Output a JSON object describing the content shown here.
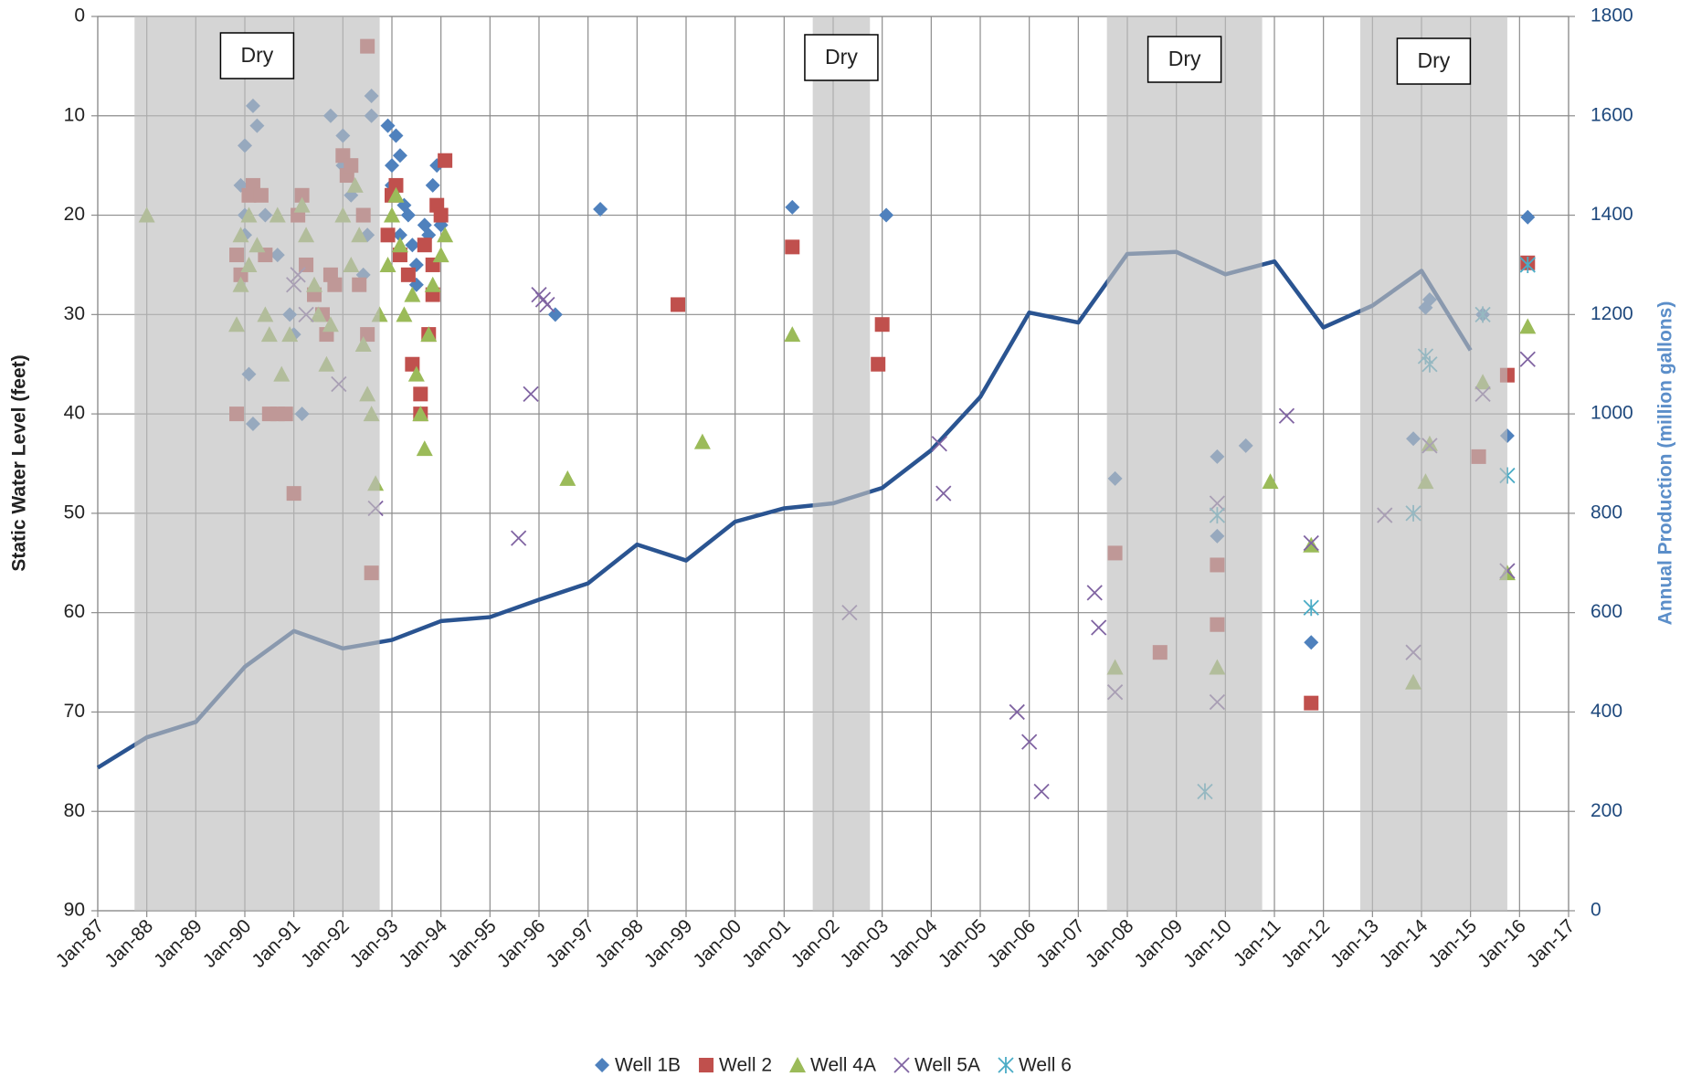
{
  "chart_data": {
    "type": "scatter",
    "ylabel": "Static Water Level (feet)",
    "y2label": "Annual Production (million gallons)",
    "ylim": [
      0,
      90
    ],
    "y_reversed": true,
    "yticks": [
      0,
      10,
      20,
      30,
      40,
      50,
      60,
      70,
      80,
      90
    ],
    "y2lim": [
      0,
      1800
    ],
    "y2ticks": [
      0,
      200,
      400,
      600,
      800,
      1000,
      1200,
      1400,
      1600,
      1800
    ],
    "xlim": [
      "1987-01",
      "2017-01"
    ],
    "xticks": [
      {
        "value": "1987-01",
        "label": "Jan-87"
      },
      {
        "value": "1988-01",
        "label": "Jan-88"
      },
      {
        "value": "1989-01",
        "label": "Jan-89"
      },
      {
        "value": "1990-01",
        "label": "Jan-90"
      },
      {
        "value": "1991-01",
        "label": "Jan-91"
      },
      {
        "value": "1992-01",
        "label": "Jan-92"
      },
      {
        "value": "1993-01",
        "label": "Jan-93"
      },
      {
        "value": "1994-01",
        "label": "Jan-94"
      },
      {
        "value": "1995-01",
        "label": "Jan-95"
      },
      {
        "value": "1996-01",
        "label": "Jan-96"
      },
      {
        "value": "1997-01",
        "label": "Jan-97"
      },
      {
        "value": "1998-01",
        "label": "Jan-98"
      },
      {
        "value": "1999-01",
        "label": "Jan-99"
      },
      {
        "value": "2000-01",
        "label": "Jan-00"
      },
      {
        "value": "2001-01",
        "label": "Jan-01"
      },
      {
        "value": "2002-01",
        "label": "Jan-02"
      },
      {
        "value": "2003-01",
        "label": "Jan-03"
      },
      {
        "value": "2004-01",
        "label": "Jan-04"
      },
      {
        "value": "2005-01",
        "label": "Jan-05"
      },
      {
        "value": "2006-01",
        "label": "Jan-06"
      },
      {
        "value": "2007-01",
        "label": "Jan-07"
      },
      {
        "value": "2008-01",
        "label": "Jan-08"
      },
      {
        "value": "2009-01",
        "label": "Jan-09"
      },
      {
        "value": "2010-01",
        "label": "Jan-10"
      },
      {
        "value": "2011-01",
        "label": "Jan-11"
      },
      {
        "value": "2012-01",
        "label": "Jan-12"
      },
      {
        "value": "2013-01",
        "label": "Jan-13"
      },
      {
        "value": "2014-01",
        "label": "Jan-14"
      },
      {
        "value": "2015-01",
        "label": "Jan-15"
      },
      {
        "value": "2016-01",
        "label": "Jan-16"
      },
      {
        "value": "2017-01",
        "label": "Jan-17"
      }
    ],
    "grid": true,
    "legend": "bottom",
    "shaded_periods": [
      {
        "label": "Dry",
        "start": "1987-10",
        "end": "1992-10",
        "color": "#bfbfbf"
      },
      {
        "label": "Dry",
        "start": "2001-08",
        "end": "2002-10",
        "color": "#bfbfbf"
      },
      {
        "label": "Dry",
        "start": "2007-08",
        "end": "2010-10",
        "color": "#bfbfbf"
      },
      {
        "label": "Dry",
        "start": "2012-10",
        "end": "2015-10",
        "color": "#bfbfbf"
      }
    ],
    "series": [
      {
        "type": "line",
        "axis": "y2",
        "color": "#2a5491",
        "x": [
          "1987-01",
          "1988-01",
          "1989-01",
          "1990-01",
          "1991-01",
          "1992-01",
          "1993-01",
          "1994-01",
          "1995-01",
          "1996-01",
          "1997-01",
          "1998-01",
          "1999-01",
          "2000-01",
          "2001-01",
          "2002-01",
          "2003-01",
          "2004-01",
          "2005-01",
          "2006-01",
          "2007-01",
          "2008-01",
          "2009-01",
          "2010-01",
          "2011-01",
          "2012-01",
          "2013-01",
          "2014-01",
          "2015-01"
        ],
        "values": [
          288,
          349,
          380,
          491,
          563,
          528,
          545,
          583,
          591,
          626,
          659,
          737,
          705,
          783,
          810,
          820,
          851,
          927,
          1034,
          1204,
          1184,
          1322,
          1326,
          1281,
          1307,
          1174,
          1218,
          1288,
          1128
        ]
      },
      {
        "name": "Well 1B",
        "marker": "diamond",
        "color": "#4f81bd",
        "x": [
          "1990-01",
          "1990-03",
          "1990-04",
          "1989-12",
          "1990-01",
          "1990-01",
          "1990-02",
          "1990-03",
          "1990-06",
          "1990-09",
          "1990-12",
          "1991-01",
          "1991-03",
          "1991-10",
          "1992-01",
          "1992-01",
          "1992-03",
          "1992-08",
          "1992-08",
          "1992-07",
          "1992-06",
          "1992-12",
          "1993-01",
          "1993-02",
          "1993-03",
          "1993-01",
          "1993-04",
          "1993-05",
          "1993-03",
          "1993-06",
          "1993-07",
          "1993-09",
          "1993-11",
          "1993-12",
          "1994-01",
          "1993-07",
          "1993-10",
          "1996-05",
          "1997-04",
          "2001-03",
          "2003-02",
          "2007-10",
          "2009-11",
          "2009-11",
          "2010-06",
          "2011-10",
          "2013-11",
          "2014-02",
          "2014-03",
          "2015-04",
          "2015-10",
          "2016-03"
        ],
        "values": [
          13,
          9,
          11,
          17,
          20,
          22,
          36,
          41,
          20,
          24,
          30,
          32,
          40,
          10,
          12,
          15,
          18,
          8,
          10,
          22,
          26,
          11,
          15,
          12,
          14,
          17,
          19,
          20,
          22,
          23,
          25,
          21,
          17,
          15,
          21,
          27,
          22,
          30,
          19.4,
          19.2,
          20,
          46.5,
          44.3,
          52.3,
          43.2,
          63,
          42.5,
          29.3,
          28.5,
          30,
          42.2,
          20.2
        ]
      },
      {
        "name": "Well 2",
        "marker": "square",
        "color": "#c0504d",
        "x": [
          "1989-11",
          "1989-11",
          "1989-12",
          "1990-02",
          "1990-03",
          "1990-05",
          "1990-06",
          "1990-07",
          "1990-09",
          "1990-11",
          "1991-01",
          "1991-02",
          "1991-03",
          "1991-04",
          "1991-06",
          "1991-08",
          "1991-09",
          "1991-10",
          "1991-11",
          "1992-01",
          "1992-02",
          "1992-03",
          "1992-05",
          "1992-06",
          "1992-07",
          "1992-08",
          "1992-07",
          "1992-12",
          "1993-01",
          "1993-02",
          "1993-03",
          "1993-05",
          "1993-06",
          "1993-08",
          "1993-08",
          "1993-09",
          "1993-10",
          "1993-11",
          "1993-12",
          "1994-01",
          "1994-02",
          "1993-11",
          "1998-11",
          "2001-03",
          "2002-12",
          "2003-01",
          "2007-10",
          "2008-09",
          "2009-11",
          "2009-11",
          "2011-10",
          "2015-03",
          "2015-10",
          "2016-03"
        ],
        "values": [
          40,
          24,
          26,
          18,
          17,
          18,
          24,
          40,
          40,
          40,
          48,
          20,
          18,
          25,
          28,
          30,
          32,
          26,
          27,
          14,
          16,
          15,
          27,
          20,
          3,
          56,
          32,
          22,
          18,
          17,
          24,
          26,
          35,
          38,
          40,
          23,
          32,
          25,
          19,
          20,
          14.5,
          28,
          29,
          23.2,
          35,
          31,
          54,
          64,
          55.2,
          61.2,
          69.1,
          44.3,
          36.1,
          24.8
        ]
      },
      {
        "name": "Well 4A",
        "marker": "triangle",
        "color": "#9bbb59",
        "x": [
          "1988-01",
          "1989-11",
          "1989-12",
          "1989-12",
          "1990-02",
          "1990-02",
          "1990-04",
          "1990-06",
          "1990-07",
          "1990-09",
          "1990-10",
          "1990-12",
          "1991-03",
          "1991-04",
          "1991-06",
          "1991-07",
          "1991-09",
          "1991-10",
          "1992-01",
          "1992-03",
          "1992-04",
          "1992-05",
          "1992-06",
          "1992-07",
          "1992-08",
          "1992-09",
          "1992-10",
          "1992-12",
          "1993-01",
          "1993-02",
          "1993-03",
          "1993-04",
          "1993-06",
          "1993-07",
          "1993-08",
          "1993-09",
          "1993-10",
          "1993-11",
          "1994-01",
          "1994-02",
          "1996-08",
          "1999-05",
          "2001-03",
          "2007-10",
          "2009-11",
          "2010-12",
          "2011-10",
          "2013-11",
          "2014-02",
          "2014-03",
          "2015-04",
          "2015-10",
          "2016-03"
        ],
        "values": [
          20,
          31,
          27,
          22,
          20,
          25,
          23,
          30,
          32,
          20,
          36,
          32,
          19,
          22,
          27,
          30,
          35,
          31,
          20,
          25,
          17,
          22,
          33,
          38,
          40,
          47,
          30,
          25,
          20,
          18,
          23,
          30,
          28,
          36,
          40,
          43.5,
          32,
          27,
          24,
          22,
          46.5,
          42.8,
          32,
          65.5,
          65.5,
          46.8,
          53.2,
          67,
          46.8,
          43,
          36.8,
          56,
          31.2
        ]
      },
      {
        "name": "Well 5A",
        "marker": "x",
        "color": "#8064a2",
        "x": [
          "1991-01",
          "1991-02",
          "1991-04",
          "1991-12",
          "1992-09",
          "1995-08",
          "1995-11",
          "1996-01",
          "1996-02",
          "1996-03",
          "2002-05",
          "2004-03",
          "2004-04",
          "2005-10",
          "2006-01",
          "2006-04",
          "2007-05",
          "2007-06",
          "2007-10",
          "2009-11",
          "2009-11",
          "2011-04",
          "2011-10",
          "2013-04",
          "2013-11",
          "2014-03",
          "2015-04",
          "2015-10",
          "2016-03"
        ],
        "values": [
          27,
          26,
          30,
          37,
          49.5,
          52.5,
          38,
          28,
          28.5,
          29,
          60,
          43,
          48,
          70,
          73,
          78,
          58,
          61.5,
          68,
          49,
          69,
          40.2,
          53,
          50.2,
          64,
          43.2,
          38,
          55.8,
          34.5
        ]
      },
      {
        "name": "Well 6",
        "marker": "asterisk",
        "color": "#4bacc6",
        "x": [
          "2009-08",
          "2009-11",
          "2011-10",
          "2013-11",
          "2014-02",
          "2014-03",
          "2015-04",
          "2015-10",
          "2016-03"
        ],
        "values": [
          78,
          50.2,
          59.5,
          50,
          34.2,
          35,
          30,
          46.2,
          25
        ]
      }
    ]
  }
}
